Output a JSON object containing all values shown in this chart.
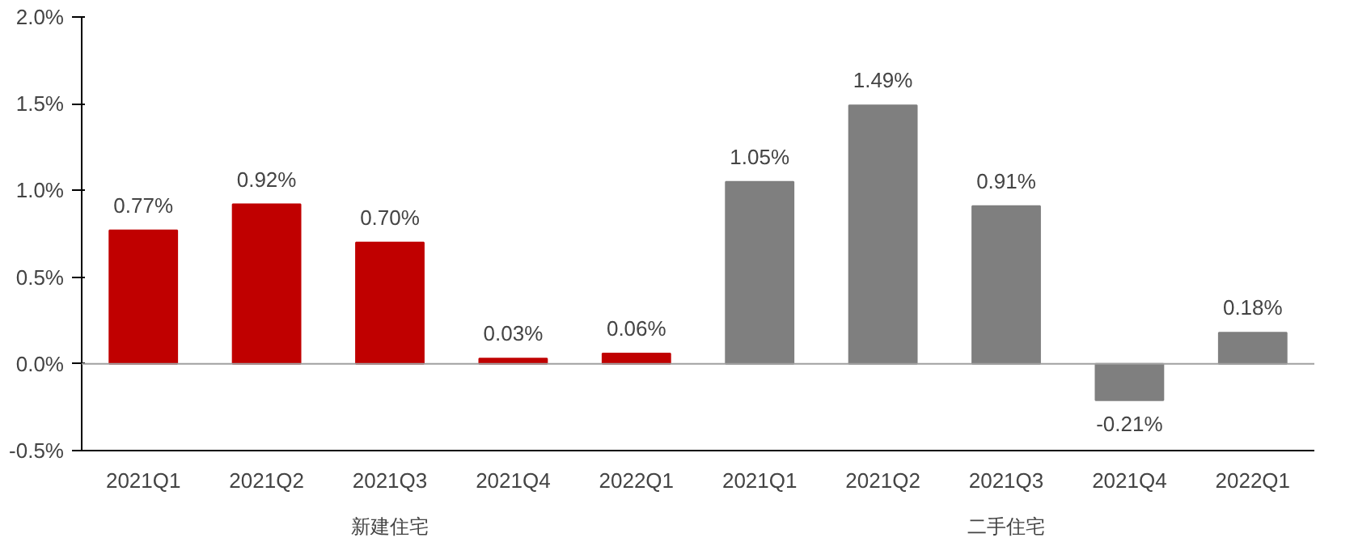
{
  "chart_data": {
    "type": "bar",
    "categories": [
      "2021Q1",
      "2021Q2",
      "2021Q3",
      "2021Q4",
      "2022Q1",
      "2021Q1",
      "2021Q2",
      "2021Q3",
      "2021Q4",
      "2022Q1"
    ],
    "values": [
      0.77,
      0.92,
      0.7,
      0.03,
      0.06,
      1.05,
      1.49,
      0.91,
      -0.21,
      0.18
    ],
    "colors": [
      "#c00000",
      "#c00000",
      "#c00000",
      "#c00000",
      "#c00000",
      "#7f7f7f",
      "#7f7f7f",
      "#7f7f7f",
      "#7f7f7f",
      "#7f7f7f"
    ],
    "value_labels": [
      "0.77%",
      "0.92%",
      "0.70%",
      "0.03%",
      "0.06%",
      "1.05%",
      "1.49%",
      "0.91%",
      "-0.21%",
      "0.18%"
    ],
    "annotations": [
      "新建住宅",
      "二手住宅"
    ],
    "ylim": [
      -0.5,
      2.0
    ],
    "yticks": [
      {
        "value": -0.5,
        "label": "-0.5%"
      },
      {
        "value": 0,
        "label": "0.0%"
      },
      {
        "value": 0.5,
        "label": "0.5%"
      },
      {
        "value": 1.0,
        "label": "1.0%"
      },
      {
        "value": 1.5,
        "label": "1.5%"
      },
      {
        "value": 2.0,
        "label": "2.0%"
      }
    ],
    "ref_lines": [
      {
        "axis": "y",
        "value": 0,
        "color": "#a0a0a0"
      }
    ]
  }
}
